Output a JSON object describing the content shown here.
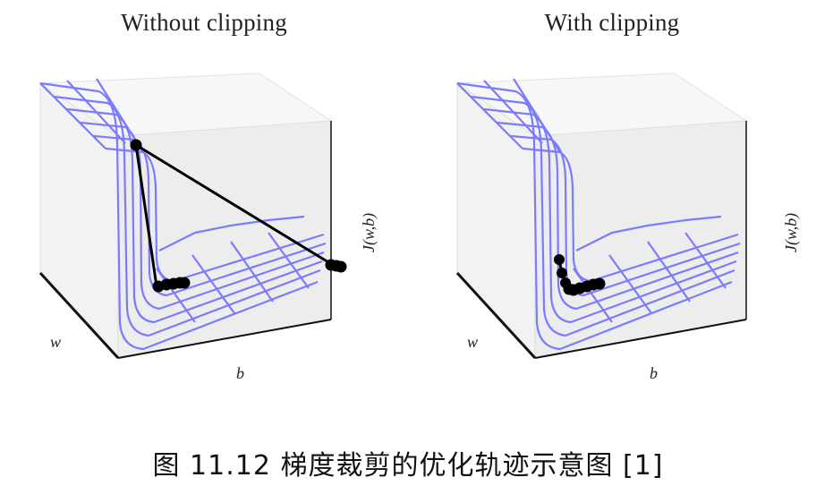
{
  "figure": {
    "panels": [
      {
        "title": "Without clipping",
        "xlabel": "b",
        "ylabel": "w",
        "zlabel": "J(w,b)",
        "clipping": false
      },
      {
        "title": "With clipping",
        "xlabel": "b",
        "ylabel": "w",
        "zlabel": "J(w,b)",
        "clipping": true
      }
    ],
    "surface_color": "#7b7bff",
    "trajectory_color": "#000000"
  },
  "caption": "图 11.12 梯度裁剪的优化轨迹示意图 [1]"
}
